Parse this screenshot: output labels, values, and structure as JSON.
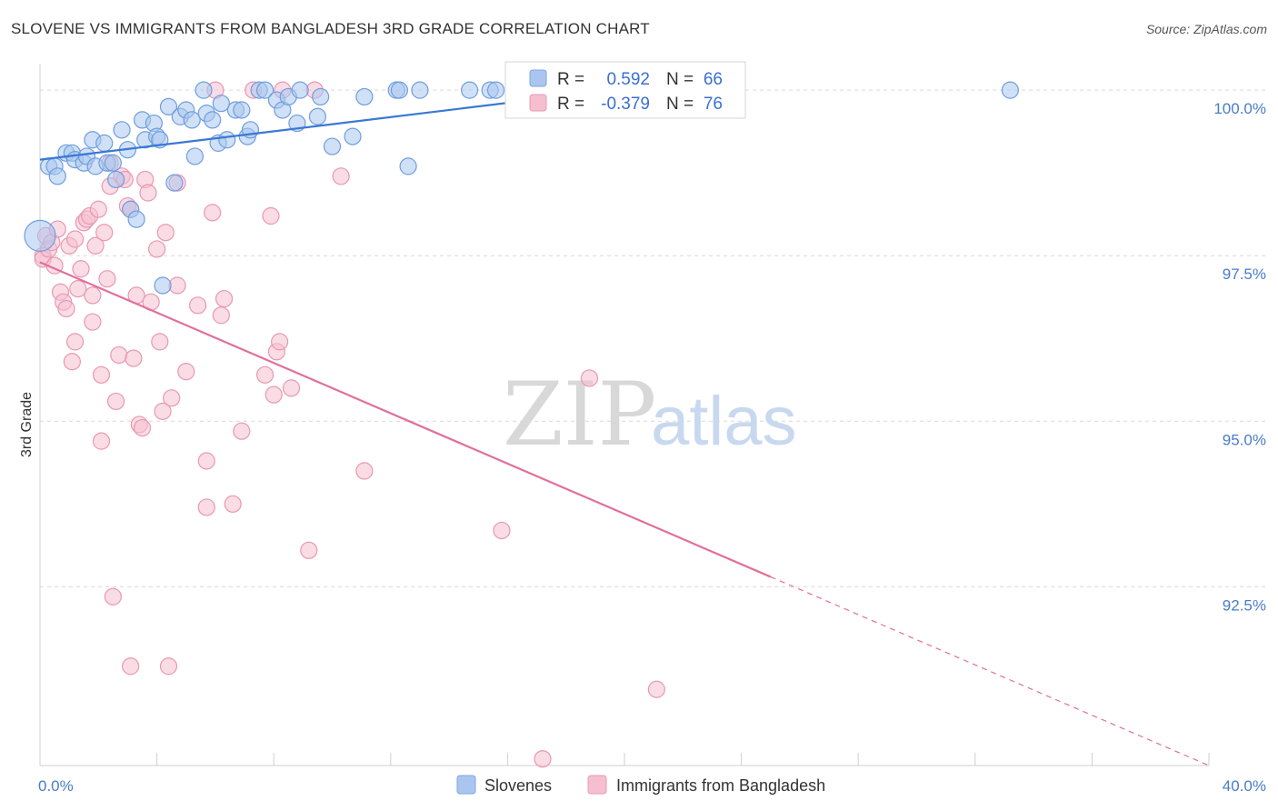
{
  "header": {
    "title": "SLOVENE VS IMMIGRANTS FROM BANGLADESH 3RD GRADE CORRELATION CHART",
    "source": "Source: ZipAtlas.com"
  },
  "watermark": {
    "zip": "ZIP",
    "atlas": "atlas"
  },
  "colors": {
    "blue": "#3a78d4",
    "blue_fill": "#aac6ef",
    "pink": "#e0709a",
    "pink_fill": "#f5bfd0",
    "grid": "#d9d9d9",
    "axis_text": "#4a7cc9"
  },
  "legend": {
    "rows": [
      {
        "r_label": "R =",
        "r_value": "0.592",
        "n_label": "N =",
        "n_value": "66"
      },
      {
        "r_label": "R =",
        "r_value": "-0.379",
        "n_label": "N =",
        "n_value": "76"
      }
    ]
  },
  "bottom_legend": {
    "items": [
      "Slovenes",
      "Immigrants from Bangladesh"
    ]
  },
  "chart_data": {
    "type": "scatter",
    "title": "SLOVENE VS IMMIGRANTS FROM BANGLADESH 3RD GRADE CORRELATION CHART",
    "xlabel": "",
    "ylabel": "3rd Grade",
    "xlim": [
      0,
      40
    ],
    "ylim": [
      89.8,
      100.4
    ],
    "x_tick_labels": [
      "0.0%",
      "40.0%"
    ],
    "y_ticks": [
      92.5,
      95.0,
      97.5,
      100.0
    ],
    "y_tick_labels": [
      "92.5%",
      "95.0%",
      "97.5%",
      "100.0%"
    ],
    "grid": true,
    "legend_position": "top-center",
    "series": [
      {
        "name": "Slovenes",
        "color": "#3a78d4",
        "R": 0.592,
        "N": 66,
        "trend": {
          "x": [
            0.0,
            19.6
          ],
          "y": [
            98.95,
            100.0
          ]
        },
        "points": [
          [
            0.0,
            97.8
          ],
          [
            0.3,
            98.85
          ],
          [
            0.5,
            98.85
          ],
          [
            0.6,
            98.7
          ],
          [
            0.9,
            99.05
          ],
          [
            1.1,
            99.05
          ],
          [
            1.2,
            98.95
          ],
          [
            1.5,
            98.9
          ],
          [
            1.6,
            99.0
          ],
          [
            1.8,
            99.25
          ],
          [
            1.9,
            98.85
          ],
          [
            2.2,
            99.2
          ],
          [
            2.3,
            98.9
          ],
          [
            2.5,
            98.9
          ],
          [
            2.6,
            98.65
          ],
          [
            2.8,
            99.4
          ],
          [
            3.0,
            99.1
          ],
          [
            3.1,
            98.2
          ],
          [
            3.3,
            98.05
          ],
          [
            3.5,
            99.55
          ],
          [
            3.6,
            99.25
          ],
          [
            3.9,
            99.5
          ],
          [
            4.0,
            99.3
          ],
          [
            4.1,
            99.25
          ],
          [
            4.2,
            97.05
          ],
          [
            4.4,
            99.75
          ],
          [
            4.6,
            98.6
          ],
          [
            4.8,
            99.6
          ],
          [
            5.0,
            99.7
          ],
          [
            5.2,
            99.55
          ],
          [
            5.3,
            99.0
          ],
          [
            5.6,
            100.0
          ],
          [
            5.7,
            99.65
          ],
          [
            5.9,
            99.55
          ],
          [
            6.1,
            99.2
          ],
          [
            6.2,
            99.8
          ],
          [
            6.4,
            99.25
          ],
          [
            6.7,
            99.7
          ],
          [
            6.9,
            99.7
          ],
          [
            7.1,
            99.3
          ],
          [
            7.2,
            99.4
          ],
          [
            7.5,
            100.0
          ],
          [
            7.7,
            100.0
          ],
          [
            8.1,
            99.85
          ],
          [
            8.3,
            99.7
          ],
          [
            8.5,
            99.9
          ],
          [
            8.8,
            99.5
          ],
          [
            8.9,
            100.0
          ],
          [
            9.5,
            99.6
          ],
          [
            9.6,
            99.9
          ],
          [
            10.0,
            99.15
          ],
          [
            10.7,
            99.3
          ],
          [
            11.1,
            99.9
          ],
          [
            12.2,
            100.0
          ],
          [
            12.3,
            100.0
          ],
          [
            12.6,
            98.85
          ],
          [
            13.0,
            100.0
          ],
          [
            14.7,
            100.0
          ],
          [
            15.4,
            100.0
          ],
          [
            15.6,
            100.0
          ],
          [
            16.6,
            100.0
          ],
          [
            17.5,
            100.0
          ],
          [
            18.4,
            100.0
          ],
          [
            19.3,
            100.0
          ],
          [
            22.2,
            100.0
          ],
          [
            33.2,
            100.0
          ]
        ]
      },
      {
        "name": "Immigrants from Bangladesh",
        "color": "#e0709a",
        "R": -0.379,
        "N": 76,
        "trend": {
          "x": [
            0.0,
            25.0,
            40.0
          ],
          "y": [
            97.4,
            92.65,
            89.8
          ]
        },
        "points": [
          [
            0.1,
            97.5
          ],
          [
            0.1,
            97.45
          ],
          [
            0.2,
            97.8
          ],
          [
            0.3,
            97.6
          ],
          [
            0.4,
            97.7
          ],
          [
            0.5,
            97.35
          ],
          [
            0.6,
            97.9
          ],
          [
            0.7,
            96.95
          ],
          [
            0.8,
            96.8
          ],
          [
            0.9,
            96.7
          ],
          [
            1.0,
            97.65
          ],
          [
            1.1,
            95.9
          ],
          [
            1.2,
            97.75
          ],
          [
            1.2,
            96.2
          ],
          [
            1.3,
            97.0
          ],
          [
            1.4,
            97.3
          ],
          [
            1.5,
            98.0
          ],
          [
            1.6,
            98.05
          ],
          [
            1.7,
            98.1
          ],
          [
            1.8,
            96.9
          ],
          [
            1.8,
            96.5
          ],
          [
            1.9,
            97.65
          ],
          [
            2.0,
            98.2
          ],
          [
            2.1,
            95.7
          ],
          [
            2.1,
            94.7
          ],
          [
            2.2,
            97.85
          ],
          [
            2.3,
            97.15
          ],
          [
            2.4,
            98.9
          ],
          [
            2.4,
            98.55
          ],
          [
            2.5,
            92.35
          ],
          [
            2.6,
            95.3
          ],
          [
            2.7,
            96.0
          ],
          [
            2.8,
            98.7
          ],
          [
            2.9,
            98.65
          ],
          [
            3.0,
            98.25
          ],
          [
            3.1,
            98.2
          ],
          [
            3.1,
            91.3
          ],
          [
            3.2,
            95.95
          ],
          [
            3.3,
            96.9
          ],
          [
            3.4,
            94.95
          ],
          [
            3.5,
            94.9
          ],
          [
            3.6,
            98.65
          ],
          [
            3.7,
            98.45
          ],
          [
            3.8,
            96.8
          ],
          [
            4.0,
            97.6
          ],
          [
            4.1,
            96.2
          ],
          [
            4.2,
            95.15
          ],
          [
            4.3,
            97.85
          ],
          [
            4.4,
            91.3
          ],
          [
            4.5,
            95.35
          ],
          [
            4.7,
            98.6
          ],
          [
            4.7,
            97.05
          ],
          [
            5.0,
            95.75
          ],
          [
            5.4,
            96.75
          ],
          [
            5.7,
            93.7
          ],
          [
            5.7,
            94.4
          ],
          [
            5.9,
            98.15
          ],
          [
            6.2,
            96.6
          ],
          [
            6.3,
            96.85
          ],
          [
            6.6,
            93.75
          ],
          [
            6.9,
            94.85
          ],
          [
            7.3,
            100.0
          ],
          [
            7.7,
            95.7
          ],
          [
            7.9,
            98.1
          ],
          [
            8.0,
            95.4
          ],
          [
            8.1,
            96.05
          ],
          [
            8.2,
            96.2
          ],
          [
            8.3,
            100.0
          ],
          [
            8.6,
            95.5
          ],
          [
            9.2,
            93.05
          ],
          [
            9.4,
            100.0
          ],
          [
            10.3,
            98.7
          ],
          [
            11.1,
            94.25
          ],
          [
            15.8,
            93.35
          ],
          [
            17.2,
            89.9
          ],
          [
            18.8,
            95.65
          ],
          [
            21.1,
            90.95
          ],
          [
            6.0,
            100.0
          ]
        ]
      }
    ]
  }
}
